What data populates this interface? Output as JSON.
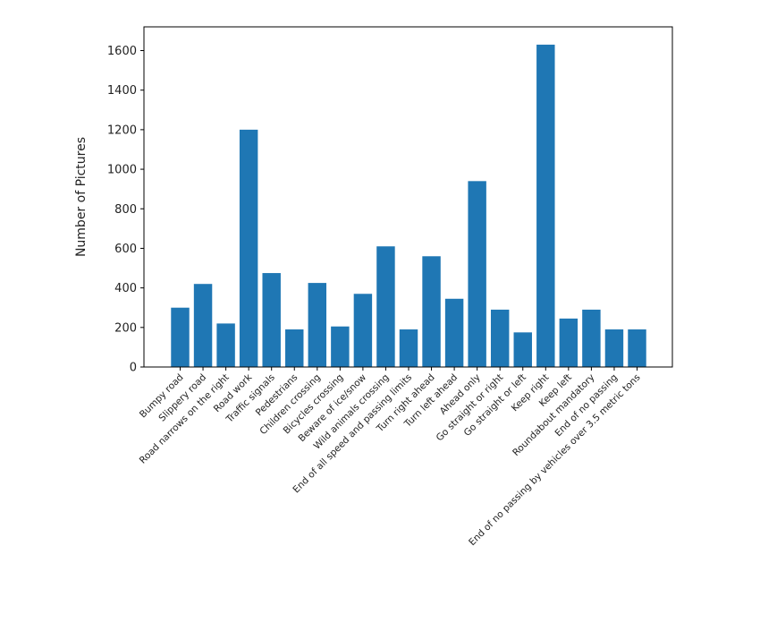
{
  "colors": {
    "bar": "#1f77b4",
    "axis": "#000000",
    "background": "#ffffff"
  },
  "chart_data": {
    "type": "bar",
    "title": "",
    "xlabel": "",
    "ylabel": "Number of Pictures",
    "ylim": [
      0,
      1720
    ],
    "yticks": [
      0,
      200,
      400,
      600,
      800,
      1000,
      1200,
      1400,
      1600
    ],
    "grid": false,
    "categories": [
      "Bumpy road",
      "Slippery road",
      "Road narrows on the right",
      "Road work",
      "Traffic signals",
      "Pedestrians",
      "Children crossing",
      "Bicycles crossing",
      "Beware of ice/snow",
      "Wild animals crossing",
      "End of all speed and passing limits",
      "Turn right ahead",
      "Turn left ahead",
      "Ahead only",
      "Go straight or right",
      "Go straight or left",
      "Keep right",
      "Keep left",
      "Roundabout mandatory",
      "End of no passing",
      "End of no passing by vehicles over 3.5 metric tons"
    ],
    "values": [
      300,
      420,
      220,
      1200,
      475,
      190,
      425,
      205,
      370,
      610,
      190,
      560,
      345,
      940,
      290,
      175,
      1630,
      245,
      290,
      190,
      190
    ]
  }
}
